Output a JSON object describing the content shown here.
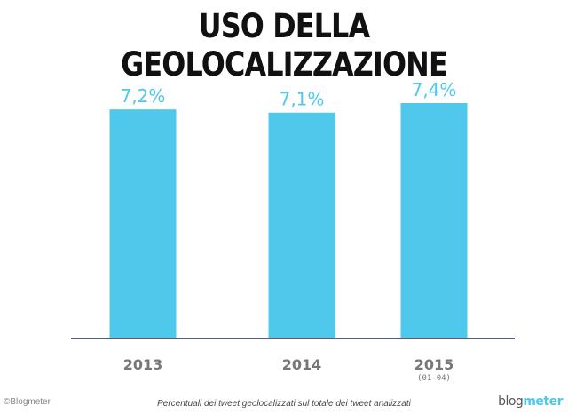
{
  "chart_data": {
    "type": "bar",
    "title": "USO DELLA GEOLOCALIZZAZIONE",
    "categories": [
      "2013",
      "2014",
      "2015"
    ],
    "category_sublabels": [
      "",
      "",
      "(01-04)"
    ],
    "values": [
      7.2,
      7.1,
      7.4
    ],
    "value_labels": [
      "7,2%",
      "7,1%",
      "7,4%"
    ],
    "unit": "%",
    "ylim": [
      0,
      7.4
    ],
    "grid": false,
    "bar_color": "#50c8ec"
  },
  "footer": {
    "copyright": "©Blogmeter",
    "note": "Percentuali dei tweet geolocalizzati sul totale dei tweet analizzati",
    "logo_part1": "blog",
    "logo_part2": "meter"
  }
}
